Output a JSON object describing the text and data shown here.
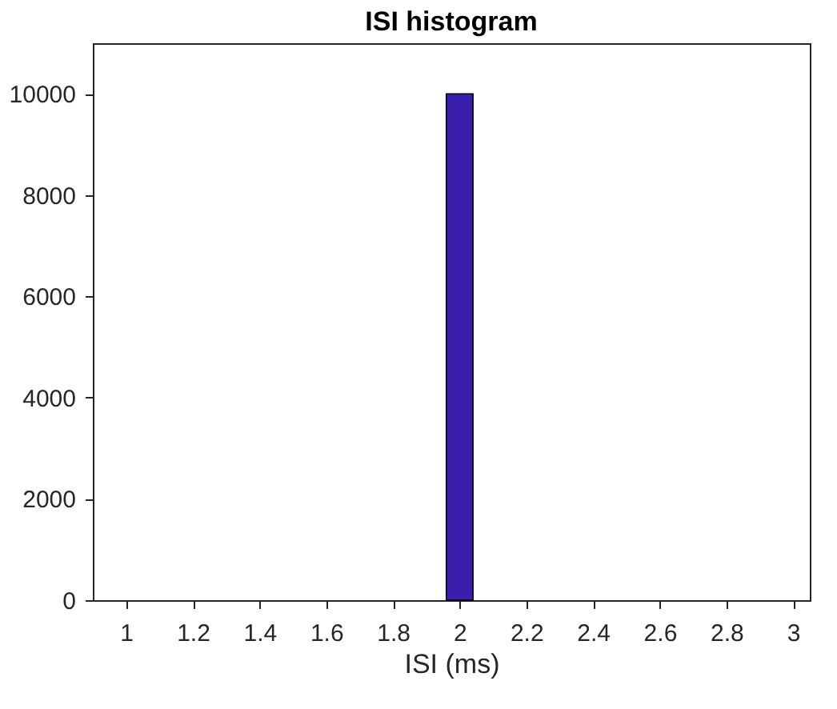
{
  "chart_data": {
    "type": "histogram",
    "title": "ISI histogram",
    "xlabel": "ISI (ms)",
    "bins": [
      1.96,
      2.04
    ],
    "values": [
      10000
    ],
    "color": "#3a1fae",
    "xlim": [
      0.9,
      3.05
    ],
    "xticks": [
      1,
      1.2,
      1.4,
      1.6,
      1.8,
      2,
      2.2,
      2.4,
      2.6,
      2.8,
      3
    ],
    "ylim": [
      0,
      11000
    ],
    "yticks": [
      0,
      2000,
      4000,
      6000,
      8000,
      10000
    ],
    "grid": false
  }
}
